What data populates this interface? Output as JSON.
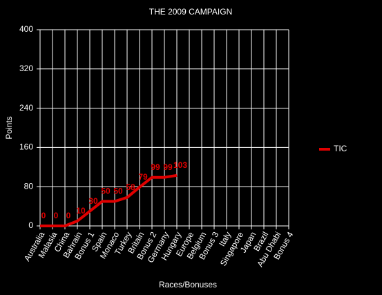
{
  "chart_data": {
    "type": "line",
    "title": "THE 2009 CAMPAIGN",
    "x_label": "Races/Bonuses",
    "y_label": "Points",
    "categories": [
      "Australia",
      "Malasia",
      "China",
      "Bahrain",
      "Bonus 1",
      "Spain",
      "Monaco",
      "Turkey",
      "Britain",
      "Bonus 2",
      "Germany",
      "Hungary",
      "Europe",
      "Belgium",
      "Bonus 3",
      "Italy",
      "Singapore",
      "Japan",
      "Brazil",
      "Abu Dhabi",
      "Bonus 4"
    ],
    "series": [
      {
        "name": "TIC",
        "color": "#e00000",
        "values": [
          0,
          0,
          0,
          10,
          30,
          50,
          50,
          58,
          79,
          99,
          99,
          103,
          null,
          null,
          null,
          null,
          null,
          null,
          null,
          null,
          null
        ]
      }
    ],
    "ylim": [
      0,
      400
    ],
    "yticks": [
      0,
      80,
      160,
      240,
      320,
      400
    ],
    "grid": true,
    "legend": "right"
  }
}
